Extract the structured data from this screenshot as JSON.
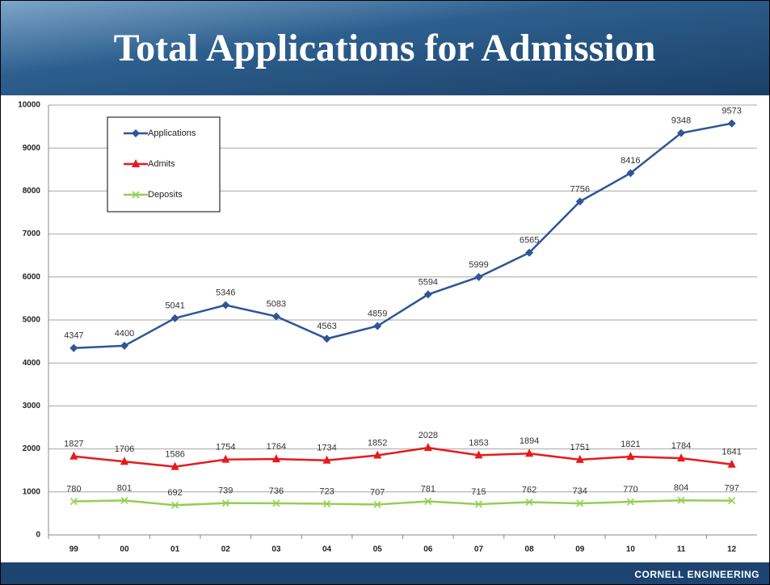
{
  "chart_data": {
    "type": "line",
    "title": "Total Applications for Admission",
    "categories": [
      "99",
      "00",
      "01",
      "02",
      "03",
      "04",
      "05",
      "06",
      "07",
      "08",
      "09",
      "10",
      "11",
      "12"
    ],
    "series": [
      {
        "name": "Applications",
        "color": "#2f5597",
        "marker": "diamond",
        "values": [
          4347,
          4400,
          5041,
          5346,
          5083,
          4563,
          4859,
          5594,
          5999,
          6565,
          7756,
          8416,
          9348,
          9573
        ]
      },
      {
        "name": "Admits",
        "color": "#e8191b",
        "marker": "triangle",
        "values": [
          1827,
          1706,
          1586,
          1754,
          1764,
          1734,
          1852,
          2028,
          1853,
          1894,
          1751,
          1821,
          1784,
          1641
        ]
      },
      {
        "name": "Deposits",
        "color": "#92d050",
        "marker": "x",
        "values": [
          780,
          801,
          692,
          739,
          736,
          723,
          707,
          781,
          715,
          762,
          734,
          770,
          804,
          797
        ]
      }
    ],
    "ylim": [
      0,
      10000
    ],
    "yticks": [
      0,
      1000,
      2000,
      3000,
      4000,
      5000,
      6000,
      7000,
      8000,
      9000,
      10000
    ],
    "grid": true,
    "legend": "top-left"
  },
  "footer": "CORNELL ENGINEERING"
}
